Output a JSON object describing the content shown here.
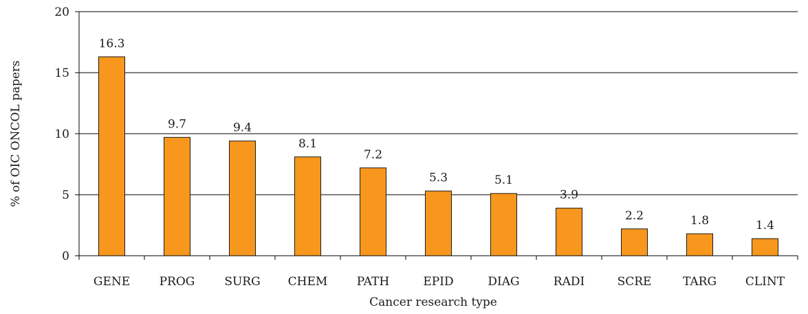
{
  "chart_data": {
    "type": "bar",
    "categories": [
      "GENE",
      "PROG",
      "SURG",
      "CHEM",
      "PATH",
      "EPID",
      "DIAG",
      "RADI",
      "SCRE",
      "TARG",
      "CLINT"
    ],
    "values": [
      16.3,
      9.7,
      9.4,
      8.1,
      7.2,
      5.3,
      5.1,
      3.9,
      2.2,
      1.8,
      1.4
    ],
    "data_labels": [
      "16.3",
      "9.7",
      "9.4",
      "8.1",
      "7.2",
      "5.3",
      "5.1",
      "3.9",
      "2.2",
      "1.8",
      "1.4"
    ],
    "xlabel": "Cancer research type",
    "ylabel": "% of OIC ONCOL papers",
    "ylim": [
      0,
      20
    ],
    "yticks": [
      0,
      5,
      10,
      15,
      20
    ],
    "ytick_labels": [
      "0",
      "5",
      "10",
      "15",
      "20"
    ],
    "grid": true,
    "bar_color": "#f7971d"
  }
}
